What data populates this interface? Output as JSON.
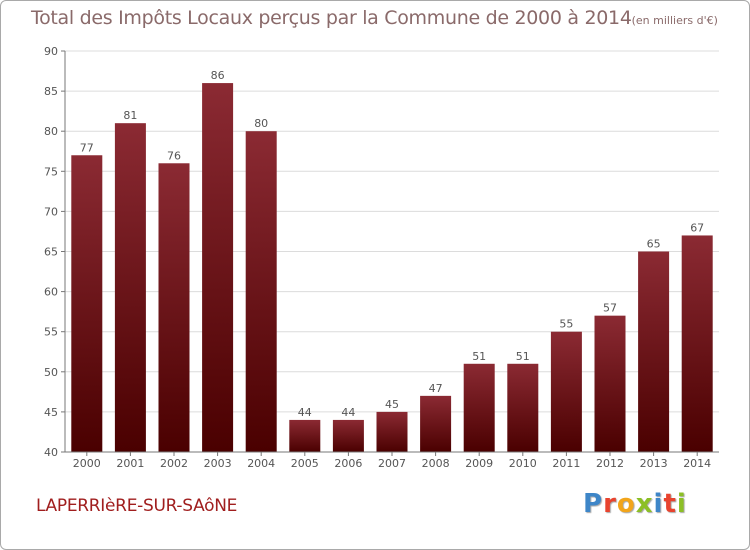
{
  "chart_data": {
    "type": "bar",
    "title": "Total des Impôts Locaux perçus par la Commune de 2000 à 2014",
    "unit_label": "(en milliers d'€)",
    "categories": [
      "2000",
      "2001",
      "2002",
      "2003",
      "2004",
      "2005",
      "2006",
      "2007",
      "2008",
      "2009",
      "2010",
      "2011",
      "2012",
      "2013",
      "2014"
    ],
    "values": [
      77,
      81,
      76,
      86,
      80,
      44,
      44,
      45,
      47,
      51,
      51,
      55,
      57,
      65,
      67
    ],
    "ylim": [
      40,
      90
    ],
    "yticks": [
      40,
      45,
      50,
      55,
      60,
      65,
      70,
      75,
      80,
      85,
      90
    ],
    "grid": "horizontal",
    "xlabel": "",
    "ylabel": ""
  },
  "footer": {
    "commune": "LAPERRIèRE-SUR-SAôNE",
    "logo_letters": [
      {
        "char": "P",
        "color": "#3e86c8"
      },
      {
        "char": "r",
        "color": "#e8432e"
      },
      {
        "char": "o",
        "color": "#f2a51b"
      },
      {
        "char": "x",
        "color": "#8cbf26"
      },
      {
        "char": "i",
        "color": "#3e86c8"
      },
      {
        "char": "t",
        "color": "#e8432e"
      },
      {
        "char": "i",
        "color": "#8cbf26"
      }
    ]
  },
  "colors": {
    "bar_top": "#8b2a33",
    "bar_bottom": "#4a0000",
    "grid": "#dcdcdc",
    "axis_text": "#555555",
    "title": "#8a6a6a"
  }
}
